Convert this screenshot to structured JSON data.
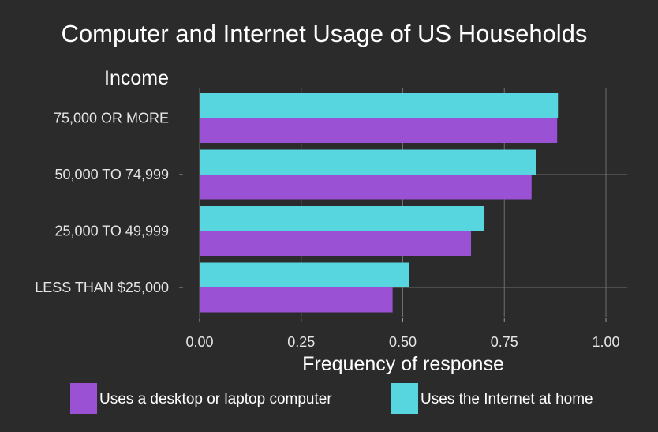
{
  "chart_data": {
    "type": "bar",
    "orientation": "horizontal",
    "title": "Computer and Internet Usage of US Households",
    "xlabel": "Frequency of response",
    "ylabel": "Income",
    "xlim": [
      0,
      1.05
    ],
    "x_ticks": [
      "0.00",
      "0.25",
      "0.50",
      "0.75",
      "1.00"
    ],
    "x_tick_values": [
      0,
      0.25,
      0.5,
      0.75,
      1.0
    ],
    "grid": true,
    "legend_position": "bottom",
    "categories": [
      "75,000 OR MORE",
      "50,000 TO 74,999",
      "25,000 TO 49,999",
      "LESS THAN $25,000"
    ],
    "series": [
      {
        "name": "Uses a desktop or laptop computer",
        "color": "#9b51d3",
        "values": [
          0.88,
          0.817,
          0.668,
          0.475
        ]
      },
      {
        "name": "Uses the Internet at home",
        "color": "#58d6df",
        "values": [
          0.882,
          0.829,
          0.701,
          0.515
        ]
      }
    ]
  },
  "colors": {
    "background": "#2b2b2b",
    "grid": "#6e6e6e",
    "text": "#ffffff"
  }
}
